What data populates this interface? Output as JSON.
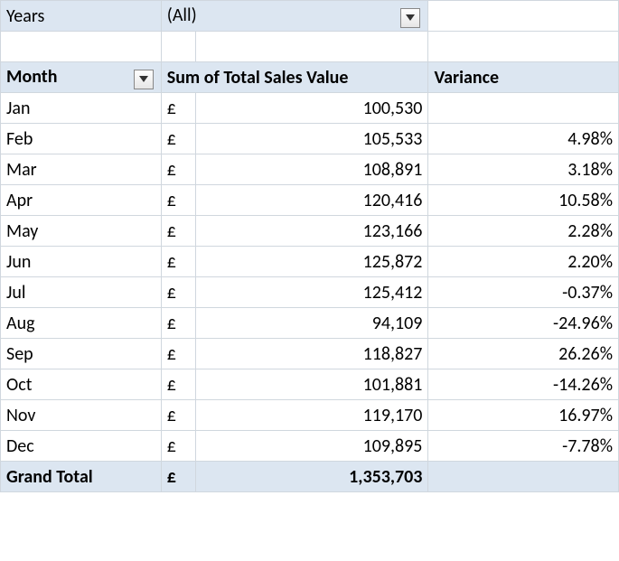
{
  "colors": {
    "header_bg": "#dce6f1",
    "grid_line": "#d0d7de",
    "text": "#000000",
    "white": "#ffffff"
  },
  "filter": {
    "label": "Years",
    "value": "(All)"
  },
  "headers": {
    "month": "Month",
    "sales": "Sum of Total Sales Value",
    "variance": "Variance"
  },
  "currency_symbol": "£",
  "rows": [
    {
      "month": "Jan",
      "sales": "100,530",
      "variance": ""
    },
    {
      "month": "Feb",
      "sales": "105,533",
      "variance": "4.98%"
    },
    {
      "month": "Mar",
      "sales": "108,891",
      "variance": "3.18%"
    },
    {
      "month": "Apr",
      "sales": "120,416",
      "variance": "10.58%"
    },
    {
      "month": "May",
      "sales": "123,166",
      "variance": "2.28%"
    },
    {
      "month": "Jun",
      "sales": "125,872",
      "variance": "2.20%"
    },
    {
      "month": "Jul",
      "sales": "125,412",
      "variance": "-0.37%"
    },
    {
      "month": "Aug",
      "sales": "94,109",
      "variance": "-24.96%"
    },
    {
      "month": "Sep",
      "sales": "118,827",
      "variance": "26.26%"
    },
    {
      "month": "Oct",
      "sales": "101,881",
      "variance": "-14.26%"
    },
    {
      "month": "Nov",
      "sales": "119,170",
      "variance": "16.97%"
    },
    {
      "month": "Dec",
      "sales": "109,895",
      "variance": "-7.78%"
    }
  ],
  "total": {
    "label": "Grand Total",
    "sales": "1,353,703",
    "variance": ""
  }
}
